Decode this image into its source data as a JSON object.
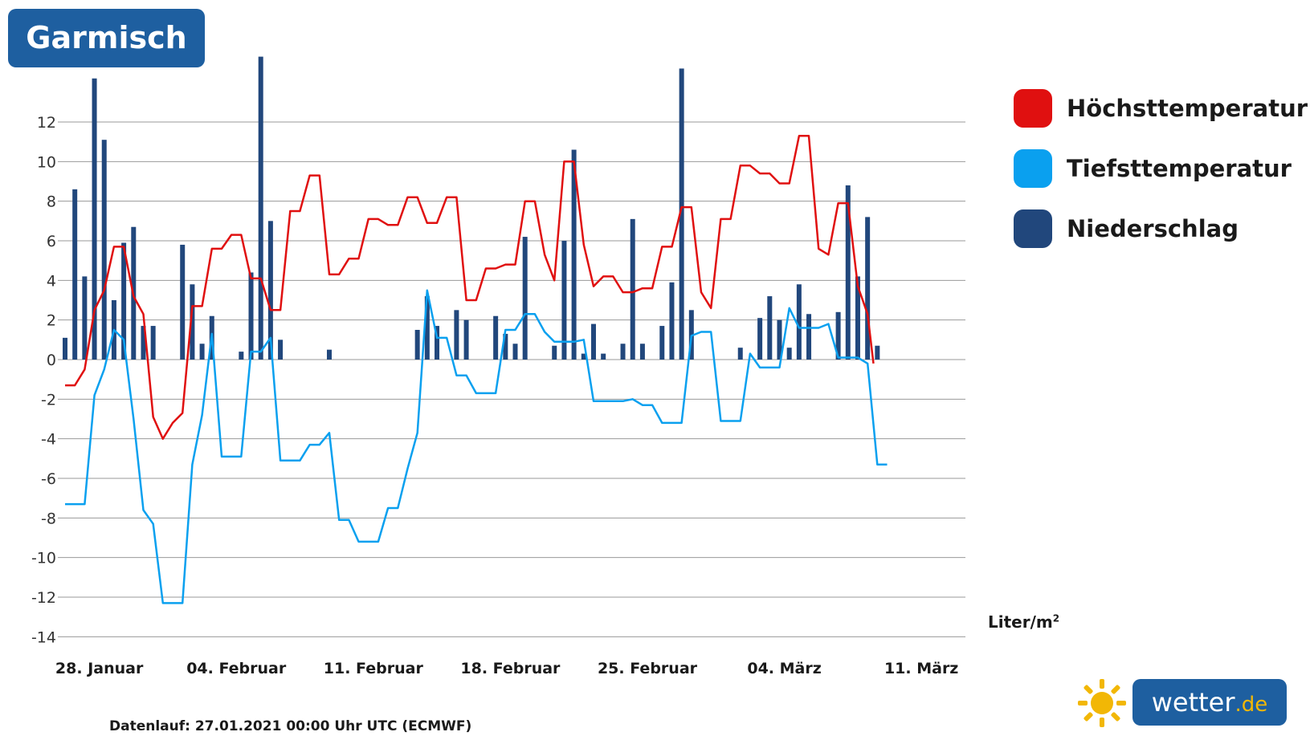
{
  "title": "Garmisch",
  "legend": {
    "items": [
      {
        "label": "Höchsttemperatur",
        "color": "#e01010"
      },
      {
        "label": "Tiefsttemperatur",
        "color": "#0aa0ef"
      },
      {
        "label": "Niederschlag",
        "color": "#21477c"
      }
    ]
  },
  "unit_label": "Liter/m",
  "unit_sup": "2",
  "footnote": "Datenlauf: 27.01.2021 00:00 Uhr UTC (ECMWF)",
  "logo": {
    "name": "wetter",
    "tld": ".de"
  },
  "chart_data": {
    "type": "line",
    "title": "Garmisch",
    "ylim": [
      -14,
      14
    ],
    "yticks": [
      12,
      10,
      8,
      6,
      4,
      2,
      0,
      -2,
      -4,
      -6,
      -8,
      -10,
      -12,
      -14
    ],
    "xlim": [
      0,
      46
    ],
    "x_tick_positions": [
      1.75,
      8.75,
      15.75,
      22.75,
      29.75,
      36.75,
      43.75
    ],
    "x_tick_labels": [
      "28. Januar",
      "04. Februar",
      "11. Februar",
      "18. Februar",
      "25. Februar",
      "04. März",
      "11. März"
    ],
    "grid": true,
    "legend_position": "right",
    "series": [
      {
        "name": "Höchsttemperatur",
        "type": "line",
        "color": "#e01010",
        "points": [
          [
            0,
            -1.3
          ],
          [
            0.5,
            -1.3
          ],
          [
            1,
            -0.5
          ],
          [
            1.5,
            2.5
          ],
          [
            2,
            3.5
          ],
          [
            2.5,
            5.7
          ],
          [
            3,
            5.7
          ],
          [
            3.5,
            3.2
          ],
          [
            4,
            2.3
          ],
          [
            4.5,
            -2.9
          ],
          [
            5,
            -4
          ],
          [
            5.5,
            -3.2
          ],
          [
            6,
            -2.7
          ],
          [
            6.5,
            2.7
          ],
          [
            7,
            2.7
          ],
          [
            7.5,
            5.6
          ],
          [
            8,
            5.6
          ],
          [
            8.5,
            6.3
          ],
          [
            9,
            6.3
          ],
          [
            9.5,
            4.1
          ],
          [
            10,
            4.1
          ],
          [
            10.5,
            2.5
          ],
          [
            11,
            2.5
          ],
          [
            11.5,
            7.5
          ],
          [
            12,
            7.5
          ],
          [
            12.5,
            9.3
          ],
          [
            13,
            9.3
          ],
          [
            13.5,
            4.3
          ],
          [
            14,
            4.3
          ],
          [
            14.5,
            5.1
          ],
          [
            15,
            5.1
          ],
          [
            15.5,
            7.1
          ],
          [
            16,
            7.1
          ],
          [
            16.5,
            6.8
          ],
          [
            17,
            6.8
          ],
          [
            17.5,
            8.2
          ],
          [
            18,
            8.2
          ],
          [
            18.5,
            6.9
          ],
          [
            19,
            6.9
          ],
          [
            19.5,
            8.2
          ],
          [
            20,
            8.2
          ],
          [
            20.5,
            3
          ],
          [
            21,
            3
          ],
          [
            21.5,
            4.6
          ],
          [
            22,
            4.6
          ],
          [
            22.5,
            4.8
          ],
          [
            23,
            4.8
          ],
          [
            23.5,
            8
          ],
          [
            24,
            8
          ],
          [
            24.5,
            5.3
          ],
          [
            25,
            4
          ],
          [
            25.5,
            10
          ],
          [
            26,
            10
          ],
          [
            26.5,
            5.8
          ],
          [
            27,
            3.7
          ],
          [
            27.5,
            4.2
          ],
          [
            28,
            4.2
          ],
          [
            28.5,
            3.4
          ],
          [
            29,
            3.4
          ],
          [
            29.5,
            3.6
          ],
          [
            30,
            3.6
          ],
          [
            30.5,
            5.7
          ],
          [
            31,
            5.7
          ],
          [
            31.5,
            7.7
          ],
          [
            32,
            7.7
          ],
          [
            32.5,
            3.4
          ],
          [
            33,
            2.6
          ],
          [
            33.5,
            7.1
          ],
          [
            34,
            7.1
          ],
          [
            34.5,
            9.8
          ],
          [
            35,
            9.8
          ],
          [
            35.5,
            9.4
          ],
          [
            36,
            9.4
          ],
          [
            36.5,
            8.9
          ],
          [
            37,
            8.9
          ],
          [
            37.5,
            11.3
          ],
          [
            38,
            11.3
          ],
          [
            38.5,
            5.6
          ],
          [
            39,
            5.3
          ],
          [
            39.5,
            7.9
          ],
          [
            40,
            7.9
          ],
          [
            40.5,
            3.7
          ],
          [
            41,
            2.3
          ],
          [
            41.3,
            -0.2
          ]
        ]
      },
      {
        "name": "Tiefsttemperatur",
        "type": "line",
        "color": "#0aa0ef",
        "points": [
          [
            0,
            -7.3
          ],
          [
            1,
            -7.3
          ],
          [
            1.5,
            -1.8
          ],
          [
            2,
            -0.5
          ],
          [
            2.5,
            1.5
          ],
          [
            3,
            1
          ],
          [
            3.5,
            -3
          ],
          [
            4,
            -7.6
          ],
          [
            4.5,
            -8.3
          ],
          [
            5,
            -12.3
          ],
          [
            6,
            -12.3
          ],
          [
            6.5,
            -5.3
          ],
          [
            7,
            -2.8
          ],
          [
            7.5,
            1.3
          ],
          [
            8,
            -4.9
          ],
          [
            9,
            -4.9
          ],
          [
            9.5,
            0.4
          ],
          [
            10,
            0.4
          ],
          [
            10.5,
            1.1
          ],
          [
            11,
            -5.1
          ],
          [
            12,
            -5.1
          ],
          [
            12.5,
            -4.3
          ],
          [
            13,
            -4.3
          ],
          [
            13.5,
            -3.7
          ],
          [
            14,
            -8.1
          ],
          [
            14.5,
            -8.1
          ],
          [
            15,
            -9.2
          ],
          [
            16,
            -9.2
          ],
          [
            16.5,
            -7.5
          ],
          [
            17,
            -7.5
          ],
          [
            17.5,
            -5.5
          ],
          [
            18,
            -3.7
          ],
          [
            18.5,
            3.5
          ],
          [
            19,
            1.1
          ],
          [
            19.5,
            1.1
          ],
          [
            20,
            -0.8
          ],
          [
            20.5,
            -0.8
          ],
          [
            21,
            -1.7
          ],
          [
            22,
            -1.7
          ],
          [
            22.5,
            1.5
          ],
          [
            23,
            1.5
          ],
          [
            23.5,
            2.3
          ],
          [
            24,
            2.3
          ],
          [
            24.5,
            1.4
          ],
          [
            25,
            0.9
          ],
          [
            26,
            0.9
          ],
          [
            26.5,
            1
          ],
          [
            27,
            -2.1
          ],
          [
            28.5,
            -2.1
          ],
          [
            29,
            -2
          ],
          [
            29.5,
            -2.3
          ],
          [
            30,
            -2.3
          ],
          [
            30.5,
            -3.2
          ],
          [
            31.5,
            -3.2
          ],
          [
            32,
            1.2
          ],
          [
            32.5,
            1.4
          ],
          [
            33,
            1.4
          ],
          [
            33.5,
            -3.1
          ],
          [
            34.5,
            -3.1
          ],
          [
            35,
            0.3
          ],
          [
            35.5,
            -0.4
          ],
          [
            36.5,
            -0.4
          ],
          [
            37,
            2.6
          ],
          [
            37.5,
            1.6
          ],
          [
            38.5,
            1.6
          ],
          [
            39,
            1.8
          ],
          [
            39.5,
            0.1
          ],
          [
            40.5,
            0.1
          ],
          [
            41,
            -0.2
          ],
          [
            41.5,
            -5.3
          ],
          [
            42,
            -5.3
          ]
        ]
      },
      {
        "name": "Niederschlag",
        "type": "bar",
        "color": "#21477c",
        "points": [
          [
            0,
            1.1
          ],
          [
            0.5,
            8.6
          ],
          [
            1,
            4.2
          ],
          [
            1.5,
            14.2
          ],
          [
            2,
            11.1
          ],
          [
            2.5,
            3
          ],
          [
            3,
            5.9
          ],
          [
            3.5,
            6.7
          ],
          [
            4,
            1.7
          ],
          [
            4.5,
            1.7
          ],
          [
            6,
            5.8
          ],
          [
            6.5,
            3.8
          ],
          [
            7,
            0.8
          ],
          [
            7.5,
            2.2
          ],
          [
            9,
            0.4
          ],
          [
            9.5,
            4.4
          ],
          [
            10,
            15.3
          ],
          [
            10.5,
            7
          ],
          [
            11,
            1
          ],
          [
            13.5,
            0.5
          ],
          [
            18,
            1.5
          ],
          [
            18.5,
            3.2
          ],
          [
            19,
            1.7
          ],
          [
            20,
            2.5
          ],
          [
            20.5,
            2
          ],
          [
            22,
            2.2
          ],
          [
            22.5,
            1.3
          ],
          [
            23,
            0.8
          ],
          [
            23.5,
            6.2
          ],
          [
            25,
            0.7
          ],
          [
            25.5,
            6
          ],
          [
            26,
            10.6
          ],
          [
            26.5,
            0.3
          ],
          [
            27,
            1.8
          ],
          [
            27.5,
            0.3
          ],
          [
            28.5,
            0.8
          ],
          [
            29,
            7.1
          ],
          [
            29.5,
            0.8
          ],
          [
            30.5,
            1.7
          ],
          [
            31,
            3.9
          ],
          [
            31.5,
            14.7
          ],
          [
            32,
            2.5
          ],
          [
            34.5,
            0.6
          ],
          [
            35.5,
            2.1
          ],
          [
            36,
            3.2
          ],
          [
            36.5,
            2
          ],
          [
            37,
            0.6
          ],
          [
            37.5,
            3.8
          ],
          [
            38,
            2.3
          ],
          [
            39.5,
            2.4
          ],
          [
            40,
            8.8
          ],
          [
            40.5,
            4.2
          ],
          [
            41,
            7.2
          ],
          [
            41.5,
            0.7
          ]
        ]
      }
    ]
  }
}
